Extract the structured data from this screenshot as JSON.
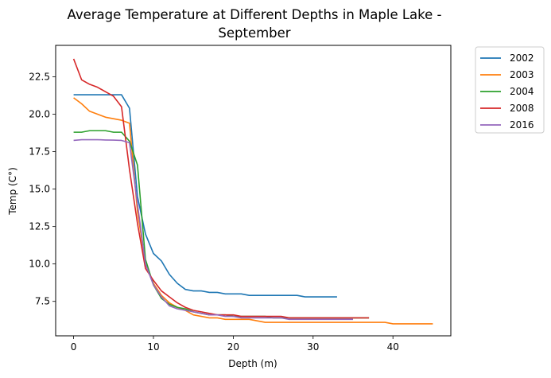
{
  "chart_data": {
    "type": "line",
    "title_lines": [
      "Average Temperature at Different Depths in Maple Lake -",
      "September"
    ],
    "xlabel": "Depth (m)",
    "ylabel": "Temp (C°)",
    "xlim": [
      -2.25,
      47.25
    ],
    "ylim": [
      5.2,
      24.6
    ],
    "xticks": [
      0,
      10,
      20,
      30,
      40
    ],
    "yticks": [
      7.5,
      10.0,
      12.5,
      15.0,
      17.5,
      20.0,
      22.5
    ],
    "ytick_labels": [
      "7.5",
      "10.0",
      "12.5",
      "15.0",
      "17.5",
      "20.0",
      "22.5"
    ],
    "grid": false,
    "legend_position": "outside-top-right",
    "series": [
      {
        "name": "2002",
        "color": "#1f77b4",
        "points": [
          [
            0,
            21.3
          ],
          [
            1,
            21.3
          ],
          [
            2,
            21.3
          ],
          [
            3,
            21.3
          ],
          [
            4,
            21.3
          ],
          [
            5,
            21.3
          ],
          [
            6,
            21.3
          ],
          [
            7,
            20.4
          ],
          [
            8,
            14.5
          ],
          [
            9,
            12.0
          ],
          [
            10,
            10.7
          ],
          [
            11,
            10.2
          ],
          [
            12,
            9.3
          ],
          [
            13,
            8.7
          ],
          [
            14,
            8.3
          ],
          [
            15,
            8.2
          ],
          [
            16,
            8.2
          ],
          [
            17,
            8.1
          ],
          [
            18,
            8.1
          ],
          [
            19,
            8.0
          ],
          [
            20,
            8.0
          ],
          [
            21,
            8.0
          ],
          [
            22,
            7.9
          ],
          [
            23,
            7.9
          ],
          [
            24,
            7.9
          ],
          [
            25,
            7.9
          ],
          [
            26,
            7.9
          ],
          [
            27,
            7.9
          ],
          [
            28,
            7.9
          ],
          [
            29,
            7.8
          ],
          [
            30,
            7.8
          ],
          [
            31,
            7.8
          ],
          [
            32,
            7.8
          ],
          [
            33,
            7.8
          ]
        ]
      },
      {
        "name": "2003",
        "color": "#ff7f0e",
        "points": [
          [
            0,
            21.1
          ],
          [
            1,
            20.7
          ],
          [
            2,
            20.2
          ],
          [
            3,
            20.0
          ],
          [
            4,
            19.8
          ],
          [
            5,
            19.7
          ],
          [
            6,
            19.6
          ],
          [
            7,
            19.4
          ],
          [
            8,
            13.5
          ],
          [
            9,
            10.0
          ],
          [
            10,
            8.7
          ],
          [
            11,
            7.9
          ],
          [
            12,
            7.4
          ],
          [
            13,
            7.1
          ],
          [
            14,
            6.9
          ],
          [
            15,
            6.6
          ],
          [
            16,
            6.5
          ],
          [
            17,
            6.4
          ],
          [
            18,
            6.4
          ],
          [
            19,
            6.3
          ],
          [
            20,
            6.3
          ],
          [
            21,
            6.3
          ],
          [
            22,
            6.3
          ],
          [
            23,
            6.2
          ],
          [
            24,
            6.1
          ],
          [
            25,
            6.1
          ],
          [
            26,
            6.1
          ],
          [
            27,
            6.1
          ],
          [
            28,
            6.1
          ],
          [
            29,
            6.1
          ],
          [
            30,
            6.1
          ],
          [
            31,
            6.1
          ],
          [
            32,
            6.1
          ],
          [
            33,
            6.1
          ],
          [
            34,
            6.1
          ],
          [
            35,
            6.1
          ],
          [
            36,
            6.1
          ],
          [
            37,
            6.1
          ],
          [
            38,
            6.1
          ],
          [
            39,
            6.1
          ],
          [
            40,
            6.0
          ],
          [
            41,
            6.0
          ],
          [
            42,
            6.0
          ],
          [
            43,
            6.0
          ],
          [
            44,
            6.0
          ],
          [
            45,
            6.0
          ]
        ]
      },
      {
        "name": "2004",
        "color": "#2ca02c",
        "points": [
          [
            0,
            18.8
          ],
          [
            1,
            18.8
          ],
          [
            2,
            18.9
          ],
          [
            3,
            18.9
          ],
          [
            4,
            18.9
          ],
          [
            5,
            18.8
          ],
          [
            6,
            18.8
          ],
          [
            7,
            18.2
          ],
          [
            8,
            16.6
          ],
          [
            9,
            10.3
          ],
          [
            10,
            8.6
          ],
          [
            11,
            7.7
          ],
          [
            12,
            7.3
          ],
          [
            13,
            7.1
          ],
          [
            14,
            7.0
          ],
          [
            15,
            6.8
          ],
          [
            16,
            6.7
          ],
          [
            17,
            6.6
          ],
          [
            18,
            6.6
          ],
          [
            19,
            6.6
          ],
          [
            20,
            6.5
          ],
          [
            21,
            6.5
          ],
          [
            22,
            6.5
          ],
          [
            23,
            6.5
          ],
          [
            24,
            6.5
          ],
          [
            25,
            6.4
          ],
          [
            26,
            6.4
          ],
          [
            27,
            6.4
          ],
          [
            28,
            6.4
          ],
          [
            29,
            6.4
          ],
          [
            30,
            6.4
          ],
          [
            31,
            6.4
          ],
          [
            32,
            6.4
          ],
          [
            33,
            6.4
          ],
          [
            34,
            6.4
          ],
          [
            35,
            6.4
          ],
          [
            36,
            6.4
          ],
          [
            37,
            6.4
          ]
        ]
      },
      {
        "name": "2008",
        "color": "#d62728",
        "points": [
          [
            0,
            23.7
          ],
          [
            1,
            22.3
          ],
          [
            2,
            22.0
          ],
          [
            3,
            21.8
          ],
          [
            4,
            21.5
          ],
          [
            5,
            21.2
          ],
          [
            6,
            20.5
          ],
          [
            7,
            16.3
          ],
          [
            8,
            12.7
          ],
          [
            9,
            9.7
          ],
          [
            10,
            8.9
          ],
          [
            11,
            8.2
          ],
          [
            12,
            7.8
          ],
          [
            13,
            7.4
          ],
          [
            14,
            7.1
          ],
          [
            15,
            6.9
          ],
          [
            16,
            6.8
          ],
          [
            17,
            6.7
          ],
          [
            18,
            6.6
          ],
          [
            19,
            6.6
          ],
          [
            20,
            6.6
          ],
          [
            21,
            6.5
          ],
          [
            22,
            6.5
          ],
          [
            23,
            6.5
          ],
          [
            24,
            6.5
          ],
          [
            25,
            6.5
          ],
          [
            26,
            6.5
          ],
          [
            27,
            6.4
          ],
          [
            28,
            6.4
          ],
          [
            29,
            6.4
          ],
          [
            30,
            6.4
          ],
          [
            31,
            6.4
          ],
          [
            32,
            6.4
          ],
          [
            33,
            6.4
          ],
          [
            34,
            6.4
          ],
          [
            35,
            6.4
          ],
          [
            36,
            6.4
          ],
          [
            37,
            6.4
          ]
        ]
      },
      {
        "name": "2016",
        "color": "#9467bd",
        "points": [
          [
            0,
            18.25
          ],
          [
            1,
            18.3
          ],
          [
            2,
            18.3
          ],
          [
            3,
            18.3
          ],
          [
            4,
            18.28
          ],
          [
            5,
            18.27
          ],
          [
            6,
            18.25
          ],
          [
            7,
            18.1
          ],
          [
            8,
            14.0
          ],
          [
            9,
            10.0
          ],
          [
            10,
            8.6
          ],
          [
            11,
            7.8
          ],
          [
            12,
            7.2
          ],
          [
            13,
            7.0
          ],
          [
            14,
            6.9
          ],
          [
            15,
            6.8
          ],
          [
            16,
            6.7
          ],
          [
            17,
            6.6
          ],
          [
            18,
            6.6
          ],
          [
            19,
            6.5
          ],
          [
            20,
            6.5
          ],
          [
            21,
            6.4
          ],
          [
            22,
            6.4
          ],
          [
            23,
            6.4
          ],
          [
            24,
            6.4
          ],
          [
            25,
            6.4
          ],
          [
            26,
            6.4
          ],
          [
            27,
            6.3
          ],
          [
            28,
            6.3
          ],
          [
            29,
            6.3
          ],
          [
            30,
            6.3
          ],
          [
            31,
            6.3
          ],
          [
            32,
            6.3
          ],
          [
            33,
            6.3
          ],
          [
            34,
            6.3
          ],
          [
            35,
            6.3
          ]
        ]
      }
    ]
  }
}
